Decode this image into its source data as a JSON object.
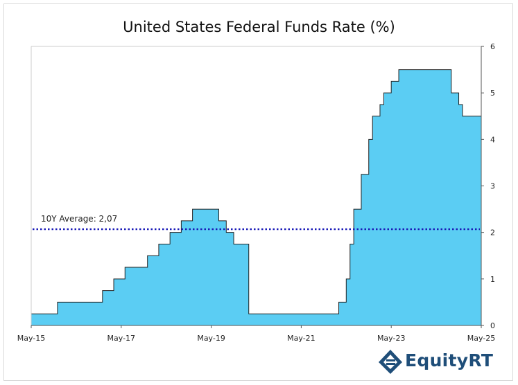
{
  "chart_data": {
    "type": "area",
    "title": "United States Federal Funds Rate (%)",
    "xlabel": "",
    "ylabel": "",
    "xlim": [
      "2015-05",
      "2025-05"
    ],
    "ylim": [
      0,
      6
    ],
    "y_ticks": [
      0,
      1,
      2,
      3,
      4,
      5,
      6
    ],
    "y_axis_side": "right",
    "x_ticks": [
      {
        "t": 2015.333,
        "label": "May-15"
      },
      {
        "t": 2017.333,
        "label": "May-17"
      },
      {
        "t": 2019.333,
        "label": "May-19"
      },
      {
        "t": 2021.333,
        "label": "May-21"
      },
      {
        "t": 2023.333,
        "label": "May-23"
      },
      {
        "t": 2025.333,
        "label": "May-25"
      }
    ],
    "series": [
      {
        "step": [
          {
            "t": 2015.333,
            "v": 0.25
          },
          {
            "t": 2015.917,
            "v": 0.5
          },
          {
            "t": 2016.917,
            "v": 0.75
          },
          {
            "t": 2017.167,
            "v": 1.0
          },
          {
            "t": 2017.417,
            "v": 1.25
          },
          {
            "t": 2017.917,
            "v": 1.5
          },
          {
            "t": 2018.167,
            "v": 1.75
          },
          {
            "t": 2018.417,
            "v": 2.0
          },
          {
            "t": 2018.667,
            "v": 2.25
          },
          {
            "t": 2018.917,
            "v": 2.5
          },
          {
            "t": 2019.5,
            "v": 2.25
          },
          {
            "t": 2019.667,
            "v": 2.0
          },
          {
            "t": 2019.833,
            "v": 1.75
          },
          {
            "t": 2020.167,
            "v": 0.25
          },
          {
            "t": 2022.167,
            "v": 0.5
          },
          {
            "t": 2022.333,
            "v": 1.0
          },
          {
            "t": 2022.417,
            "v": 1.75
          },
          {
            "t": 2022.5,
            "v": 2.5
          },
          {
            "t": 2022.667,
            "v": 3.25
          },
          {
            "t": 2022.833,
            "v": 4.0
          },
          {
            "t": 2022.917,
            "v": 4.5
          },
          {
            "t": 2023.083,
            "v": 4.75
          },
          {
            "t": 2023.167,
            "v": 5.0
          },
          {
            "t": 2023.333,
            "v": 5.25
          },
          {
            "t": 2023.5,
            "v": 5.5
          },
          {
            "t": 2024.667,
            "v": 5.0
          },
          {
            "t": 2024.833,
            "v": 4.75
          },
          {
            "t": 2024.917,
            "v": 4.5
          },
          {
            "t": 2025.333,
            "v": 4.5
          }
        ],
        "fill": "#5bcdf3",
        "stroke": "#222222"
      }
    ],
    "reference_line": {
      "label": "10Y Average: 2,07",
      "value": 2.07,
      "color": "#1a1ab8",
      "style": "dotted"
    },
    "grid": false,
    "legend": "none"
  },
  "brand": {
    "logo_text": "EquityRT",
    "color": "#1f4e79"
  }
}
